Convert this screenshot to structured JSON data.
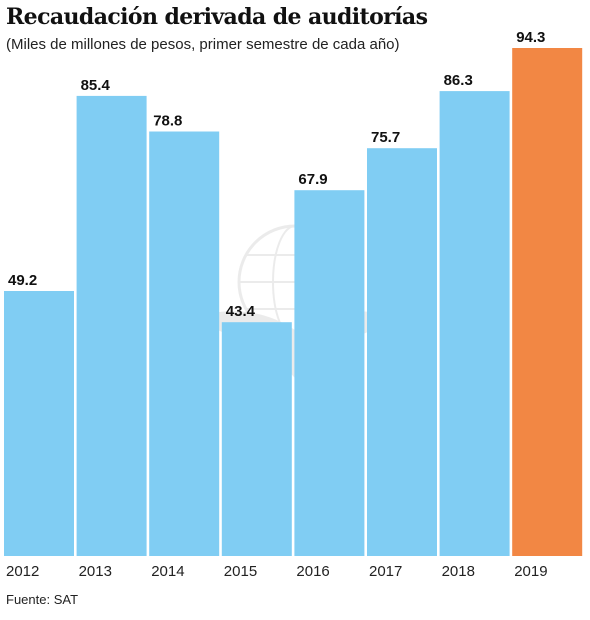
{
  "header": {
    "title": "Recaudación derivada de auditorías",
    "subtitle": "(Miles de millones de pesos, primer semestre de cada año)"
  },
  "footer": {
    "source": "Fuente: SAT"
  },
  "colors": {
    "bar": "#80cdf3",
    "highlight": "#f28744",
    "watermark": "#b0b0b0"
  },
  "icons": {
    "watermark": "sat-eagle-seal-icon"
  },
  "chart_data": {
    "type": "bar",
    "title": "Recaudación derivada de auditorías",
    "subtitle": "(Miles de millones de pesos, primer semestre de cada año)",
    "categories": [
      "2012",
      "2013",
      "2014",
      "2015",
      "2016",
      "2017",
      "2018",
      "2019"
    ],
    "values": [
      49.2,
      85.4,
      78.8,
      43.4,
      67.9,
      75.7,
      86.3,
      94.3
    ],
    "value_labels": [
      "49.2",
      "85.4",
      "78.8",
      "43.4",
      "67.9",
      "75.7",
      "86.3",
      "94.3"
    ],
    "highlight_category": "2019",
    "xlabel": "",
    "ylabel": "",
    "ylim": [
      0,
      94.3
    ],
    "grid": false,
    "legend": "none"
  }
}
